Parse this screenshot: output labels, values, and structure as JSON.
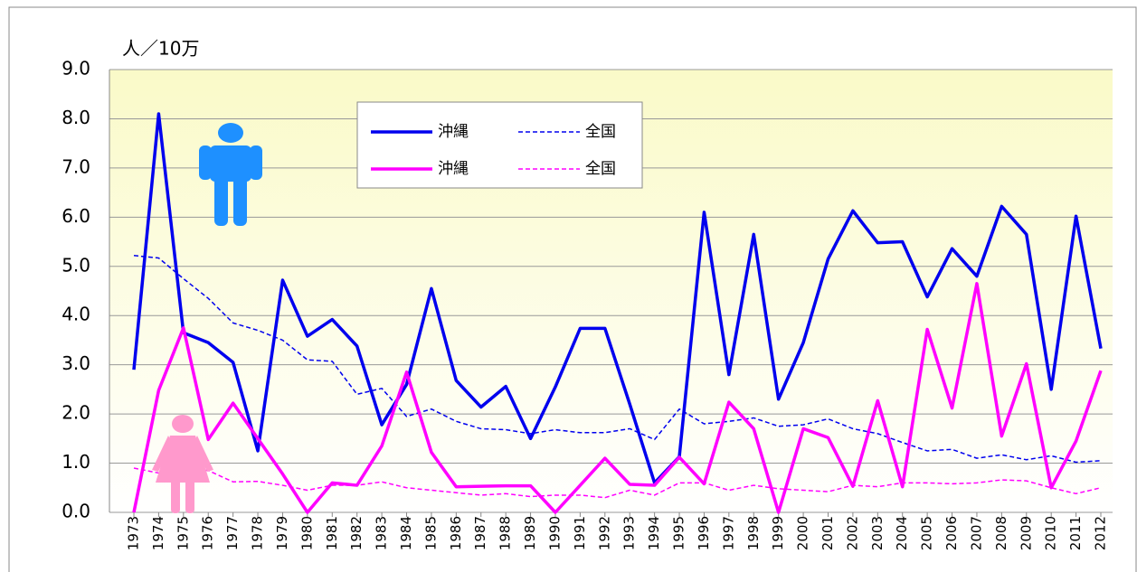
{
  "chart_data": {
    "type": "line",
    "y_axis_label": "人／10万",
    "categories": [
      "1973",
      "1974",
      "1975",
      "1976",
      "1977",
      "1978",
      "1979",
      "1980",
      "1981",
      "1982",
      "1983",
      "1984",
      "1985",
      "1986",
      "1987",
      "1988",
      "1989",
      "1990",
      "1991",
      "1992",
      "1993",
      "1994",
      "1995",
      "1996",
      "1997",
      "1998",
      "1999",
      "2000",
      "2001",
      "2002",
      "2003",
      "2004",
      "2005",
      "2006",
      "2007",
      "2008",
      "2009",
      "2010",
      "2011",
      "2012"
    ],
    "series": [
      {
        "name": "沖縄",
        "color": "#0000ee",
        "line_style": "solid",
        "values": [
          2.9,
          8.1,
          3.65,
          3.45,
          3.05,
          1.25,
          4.72,
          3.58,
          3.92,
          3.38,
          1.78,
          2.6,
          4.55,
          2.68,
          2.14,
          2.56,
          1.5,
          2.55,
          3.74,
          3.74,
          2.2,
          0.6,
          1.13,
          6.1,
          2.8,
          5.65,
          2.3,
          3.45,
          5.15,
          6.13,
          5.48,
          5.5,
          4.38,
          5.36,
          4.8,
          6.22,
          5.65,
          2.5,
          6.02,
          3.33
        ]
      },
      {
        "name": "全国",
        "color": "#0000ee",
        "line_style": "dashed",
        "values": [
          5.22,
          5.17,
          4.75,
          4.35,
          3.85,
          3.7,
          3.5,
          3.1,
          3.07,
          2.4,
          2.52,
          1.95,
          2.1,
          1.85,
          1.7,
          1.68,
          1.6,
          1.68,
          1.62,
          1.62,
          1.7,
          1.48,
          2.1,
          1.8,
          1.85,
          1.92,
          1.75,
          1.78,
          1.9,
          1.7,
          1.6,
          1.42,
          1.25,
          1.28,
          1.1,
          1.17,
          1.07,
          1.15,
          1.02,
          1.05
        ]
      },
      {
        "name": "沖縄",
        "color": "#ff00ff",
        "line_style": "solid",
        "values": [
          0,
          2.48,
          3.75,
          1.48,
          2.22,
          1.5,
          0.78,
          0,
          0.6,
          0.55,
          1.35,
          2.85,
          1.22,
          0.52,
          0.53,
          0.54,
          0.54,
          0,
          0.55,
          1.1,
          0.57,
          0.55,
          1.12,
          0.58,
          2.24,
          1.7,
          0,
          1.7,
          1.52,
          0.53,
          2.27,
          0.52,
          3.72,
          2.12,
          4.65,
          1.55,
          3.02,
          0.5,
          1.45,
          2.88
        ]
      },
      {
        "name": "全国",
        "color": "#ff00ff",
        "line_style": "dashed",
        "values": [
          0.9,
          0.8,
          0.9,
          0.85,
          0.62,
          0.63,
          0.55,
          0.45,
          0.55,
          0.55,
          0.62,
          0.5,
          0.45,
          0.4,
          0.35,
          0.38,
          0.32,
          0.35,
          0.35,
          0.3,
          0.45,
          0.35,
          0.6,
          0.6,
          0.45,
          0.55,
          0.48,
          0.45,
          0.42,
          0.55,
          0.52,
          0.6,
          0.6,
          0.58,
          0.6,
          0.66,
          0.64,
          0.5,
          0.38,
          0.5
        ]
      }
    ],
    "ylim": [
      0,
      9
    ],
    "yticks": [
      {
        "value": 0,
        "label": "0.0"
      },
      {
        "value": 1,
        "label": "1.0"
      },
      {
        "value": 2,
        "label": "2.0"
      },
      {
        "value": 3,
        "label": "3.0"
      },
      {
        "value": 4,
        "label": "4.0"
      },
      {
        "value": 5,
        "label": "5.0"
      },
      {
        "value": 6,
        "label": "6.0"
      },
      {
        "value": 7,
        "label": "7.0"
      },
      {
        "value": 8,
        "label": "8.0"
      },
      {
        "value": 9,
        "label": "9.0"
      }
    ],
    "grid": true
  }
}
